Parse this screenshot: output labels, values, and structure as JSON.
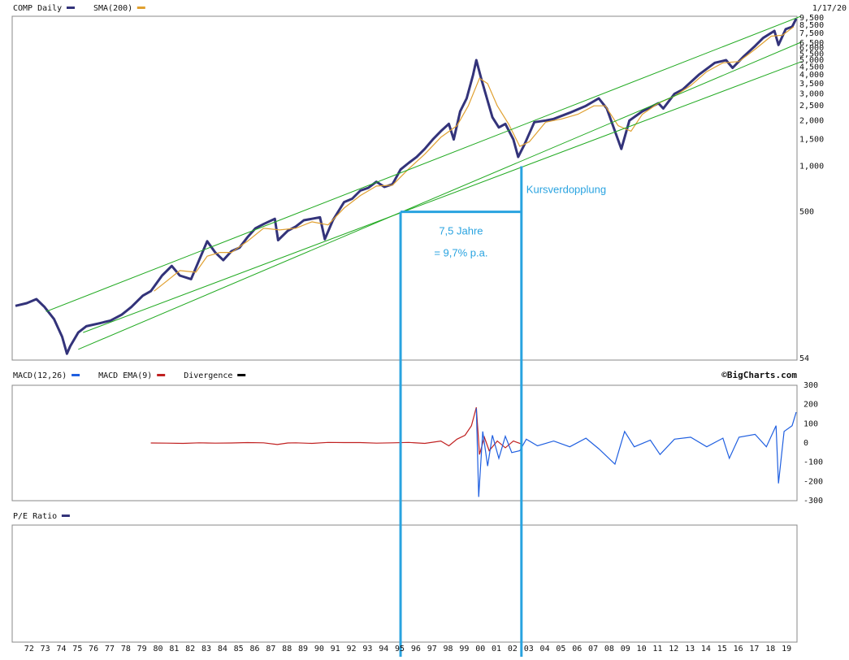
{
  "chart_data": [
    {
      "type": "line",
      "panel": "price",
      "scale": "log",
      "legend": [
        {
          "label": "COMP Daily",
          "color": "#33337a"
        },
        {
          "label": "SMA(200)",
          "color": "#e0a030"
        }
      ],
      "date_label": "1/17/20",
      "ylim": [
        54,
        9500
      ],
      "y_ticks": [
        {
          "value": 9500,
          "label": "9,500"
        },
        {
          "value": 8500,
          "label": "8,500"
        },
        {
          "value": 7500,
          "label": "7,500"
        },
        {
          "value": 6500,
          "label": "6,500"
        },
        {
          "value": 6000,
          "label": "6,000"
        },
        {
          "value": 5500,
          "label": "5,500"
        },
        {
          "value": 5000,
          "label": "5,000"
        },
        {
          "value": 4500,
          "label": "4,500"
        },
        {
          "value": 4000,
          "label": "4,000"
        },
        {
          "value": 3500,
          "label": "3,500"
        },
        {
          "value": 3000,
          "label": "3,000"
        },
        {
          "value": 2500,
          "label": "2,500"
        },
        {
          "value": 2000,
          "label": "2,000"
        },
        {
          "value": 1500,
          "label": "1,500"
        },
        {
          "value": 1000,
          "label": "1,000"
        },
        {
          "value": 500,
          "label": "500"
        },
        {
          "value": 54,
          "label": "54"
        }
      ],
      "series": [
        {
          "color": "#33337a",
          "points": [
            [
              1971.6,
              120
            ],
            [
              1972.3,
              125
            ],
            [
              1972.9,
              133
            ],
            [
              1973.4,
              118
            ],
            [
              1974.0,
              98
            ],
            [
              1974.5,
              75
            ],
            [
              1974.8,
              58
            ],
            [
              1975.0,
              65
            ],
            [
              1975.5,
              80
            ],
            [
              1976.0,
              88
            ],
            [
              1976.8,
              92
            ],
            [
              1977.5,
              96
            ],
            [
              1978.2,
              105
            ],
            [
              1978.8,
              118
            ],
            [
              1979.5,
              140
            ],
            [
              1980.0,
              150
            ],
            [
              1980.7,
              190
            ],
            [
              1981.3,
              220
            ],
            [
              1981.8,
              190
            ],
            [
              1982.5,
              180
            ],
            [
              1983.0,
              240
            ],
            [
              1983.5,
              320
            ],
            [
              1984.0,
              270
            ],
            [
              1984.5,
              240
            ],
            [
              1985.0,
              275
            ],
            [
              1985.5,
              290
            ],
            [
              1986.0,
              340
            ],
            [
              1986.5,
              390
            ],
            [
              1987.0,
              415
            ],
            [
              1987.7,
              450
            ],
            [
              1987.9,
              325
            ],
            [
              1988.5,
              375
            ],
            [
              1989.0,
              400
            ],
            [
              1989.5,
              440
            ],
            [
              1990.0,
              450
            ],
            [
              1990.5,
              460
            ],
            [
              1990.8,
              330
            ],
            [
              1991.3,
              440
            ],
            [
              1992.0,
              580
            ],
            [
              1992.5,
              610
            ],
            [
              1993.0,
              690
            ],
            [
              1993.5,
              720
            ],
            [
              1994.0,
              790
            ],
            [
              1994.5,
              730
            ],
            [
              1995.0,
              760
            ],
            [
              1995.5,
              950
            ],
            [
              1996.0,
              1050
            ],
            [
              1996.5,
              1150
            ],
            [
              1997.0,
              1300
            ],
            [
              1997.5,
              1500
            ],
            [
              1998.0,
              1700
            ],
            [
              1998.5,
              1900
            ],
            [
              1998.8,
              1500
            ],
            [
              1999.2,
              2300
            ],
            [
              1999.6,
              2800
            ],
            [
              2000.0,
              4000
            ],
            [
              2000.2,
              5000
            ],
            [
              2000.5,
              3800
            ],
            [
              2000.9,
              2700
            ],
            [
              2001.2,
              2100
            ],
            [
              2001.6,
              1800
            ],
            [
              2002.0,
              1900
            ],
            [
              2002.5,
              1500
            ],
            [
              2002.8,
              1150
            ],
            [
              2003.2,
              1400
            ],
            [
              2003.8,
              1950
            ],
            [
              2004.5,
              2000
            ],
            [
              2005.0,
              2050
            ],
            [
              2006.0,
              2250
            ],
            [
              2007.0,
              2500
            ],
            [
              2007.8,
              2800
            ],
            [
              2008.3,
              2400
            ],
            [
              2008.8,
              1700
            ],
            [
              2009.2,
              1300
            ],
            [
              2009.7,
              2000
            ],
            [
              2010.5,
              2300
            ],
            [
              2011.5,
              2600
            ],
            [
              2011.8,
              2400
            ],
            [
              2012.5,
              3000
            ],
            [
              2013.0,
              3200
            ],
            [
              2014.0,
              4000
            ],
            [
              2015.0,
              4800
            ],
            [
              2015.7,
              5000
            ],
            [
              2016.1,
              4450
            ],
            [
              2016.8,
              5300
            ],
            [
              2017.5,
              6200
            ],
            [
              2018.0,
              7000
            ],
            [
              2018.7,
              7800
            ],
            [
              2018.95,
              6300
            ],
            [
              2019.4,
              8000
            ],
            [
              2019.8,
              8300
            ],
            [
              2020.05,
              9390
            ]
          ]
        },
        {
          "color": "#e0a030",
          "points": [
            [
              1980.2,
              150
            ],
            [
              1981.0,
              175
            ],
            [
              1981.8,
              205
            ],
            [
              1982.8,
              200
            ],
            [
              1983.5,
              255
            ],
            [
              1984.3,
              270
            ],
            [
              1985.0,
              270
            ],
            [
              1986.0,
              320
            ],
            [
              1987.0,
              390
            ],
            [
              1988.0,
              380
            ],
            [
              1989.0,
              390
            ],
            [
              1990.0,
              430
            ],
            [
              1991.0,
              410
            ],
            [
              1992.0,
              530
            ],
            [
              1993.0,
              640
            ],
            [
              1994.0,
              740
            ],
            [
              1995.0,
              750
            ],
            [
              1996.0,
              960
            ],
            [
              1997.0,
              1200
            ],
            [
              1998.0,
              1550
            ],
            [
              1999.0,
              1850
            ],
            [
              1999.7,
              2500
            ],
            [
              2000.4,
              3800
            ],
            [
              2000.9,
              3500
            ],
            [
              2001.5,
              2500
            ],
            [
              2002.2,
              1900
            ],
            [
              2002.9,
              1350
            ],
            [
              2003.5,
              1450
            ],
            [
              2004.5,
              1950
            ],
            [
              2005.5,
              2050
            ],
            [
              2006.5,
              2200
            ],
            [
              2007.5,
              2500
            ],
            [
              2008.2,
              2500
            ],
            [
              2009.0,
              1850
            ],
            [
              2009.8,
              1700
            ],
            [
              2010.5,
              2200
            ],
            [
              2011.5,
              2600
            ],
            [
              2012.5,
              2900
            ],
            [
              2013.5,
              3400
            ],
            [
              2014.5,
              4200
            ],
            [
              2015.5,
              4800
            ],
            [
              2016.5,
              4900
            ],
            [
              2017.5,
              5900
            ],
            [
              2018.5,
              7200
            ],
            [
              2019.2,
              7300
            ],
            [
              2019.9,
              8300
            ]
          ]
        }
      ],
      "trend_lines": [
        {
          "color": "#22aa22",
          "points": [
            [
              1973.5,
              110
            ],
            [
              2020.4,
              9800
            ]
          ]
        },
        {
          "color": "#22aa22",
          "points": [
            [
              1975.5,
              62
            ],
            [
              2020.4,
              6600
            ]
          ]
        },
        {
          "color": "#22aa22",
          "points": [
            [
              1975.8,
              80
            ],
            [
              2020.4,
              4900
            ]
          ]
        }
      ],
      "annotations": [
        {
          "text": "Kursverdopplung",
          "color": "#29a3e0"
        },
        {
          "text": "7,5 Jahre",
          "color": "#29a3e0"
        },
        {
          "text": "= 9,7% p.a.",
          "color": "#29a3e0"
        }
      ],
      "measure": {
        "x_start": 1995.5,
        "x_end": 2003.0,
        "y_level": 500,
        "color": "#29a3e0"
      }
    },
    {
      "type": "line",
      "panel": "macd",
      "legend": [
        {
          "label": "MACD(12,26)",
          "color": "#1f5fe0"
        },
        {
          "label": "MACD EMA(9)",
          "color": "#c02020"
        },
        {
          "label": "Divergence",
          "color": "#000000"
        }
      ],
      "source_label": "©BigCharts.com",
      "ylim": [
        -300,
        300
      ],
      "y_ticks": [
        300,
        200,
        100,
        0,
        -100,
        -200,
        -300
      ],
      "series": [
        {
          "color": "#c02020",
          "points": [
            [
              1980.0,
              0
            ],
            [
              1981.0,
              -1
            ],
            [
              1982.0,
              -2
            ],
            [
              1983.0,
              1
            ],
            [
              1984.0,
              -1
            ],
            [
              1985.0,
              0
            ],
            [
              1986.0,
              2
            ],
            [
              1987.0,
              1
            ],
            [
              1987.85,
              -8
            ],
            [
              1988.5,
              0
            ],
            [
              1989.0,
              1
            ],
            [
              1990.0,
              -2
            ],
            [
              1991.0,
              3
            ],
            [
              1992.0,
              2
            ],
            [
              1993.0,
              2
            ],
            [
              1994.0,
              -1
            ],
            [
              1995.0,
              1
            ],
            [
              1996.0,
              3
            ],
            [
              1997.0,
              -2
            ],
            [
              1998.0,
              10
            ],
            [
              1998.5,
              -15
            ],
            [
              1999.0,
              20
            ],
            [
              1999.5,
              40
            ],
            [
              1999.9,
              90
            ],
            [
              2000.2,
              185
            ],
            [
              2000.4,
              -60
            ],
            [
              2000.7,
              30
            ],
            [
              2001.0,
              -40
            ],
            [
              2001.5,
              10
            ],
            [
              2002.0,
              -25
            ],
            [
              2002.5,
              10
            ],
            [
              2003.0,
              -5
            ]
          ]
        },
        {
          "color": "#1f5fe0",
          "points": [
            [
              2000.2,
              180
            ],
            [
              2000.35,
              -280
            ],
            [
              2000.6,
              60
            ],
            [
              2000.9,
              -120
            ],
            [
              2001.2,
              40
            ],
            [
              2001.6,
              -80
            ],
            [
              2002.0,
              35
            ],
            [
              2002.4,
              -50
            ],
            [
              2002.9,
              -40
            ],
            [
              2003.3,
              20
            ],
            [
              2004.0,
              -15
            ],
            [
              2005.0,
              10
            ],
            [
              2006.0,
              -20
            ],
            [
              2007.0,
              25
            ],
            [
              2007.8,
              -30
            ],
            [
              2008.8,
              -110
            ],
            [
              2009.4,
              60
            ],
            [
              2010.0,
              -20
            ],
            [
              2011.0,
              15
            ],
            [
              2011.6,
              -60
            ],
            [
              2012.5,
              20
            ],
            [
              2013.5,
              30
            ],
            [
              2014.5,
              -20
            ],
            [
              2015.5,
              25
            ],
            [
              2015.9,
              -80
            ],
            [
              2016.5,
              30
            ],
            [
              2017.5,
              45
            ],
            [
              2018.2,
              -20
            ],
            [
              2018.8,
              90
            ],
            [
              2018.95,
              -210
            ],
            [
              2019.3,
              60
            ],
            [
              2019.8,
              90
            ],
            [
              2020.05,
              160
            ]
          ]
        }
      ]
    },
    {
      "type": "line",
      "panel": "pe",
      "legend": [
        {
          "label": "P/E Ratio",
          "color": "#33337a"
        }
      ]
    }
  ],
  "x_axis": {
    "ticks": [
      "72",
      "73",
      "74",
      "75",
      "76",
      "77",
      "78",
      "79",
      "80",
      "81",
      "82",
      "83",
      "84",
      "85",
      "86",
      "87",
      "88",
      "89",
      "90",
      "91",
      "92",
      "93",
      "94",
      "95",
      "96",
      "97",
      "98",
      "99",
      "00",
      "01",
      "02",
      "03",
      "04",
      "05",
      "06",
      "07",
      "08",
      "09",
      "10",
      "11",
      "12",
      "13",
      "14",
      "15",
      "16",
      "17",
      "18",
      "19"
    ]
  }
}
